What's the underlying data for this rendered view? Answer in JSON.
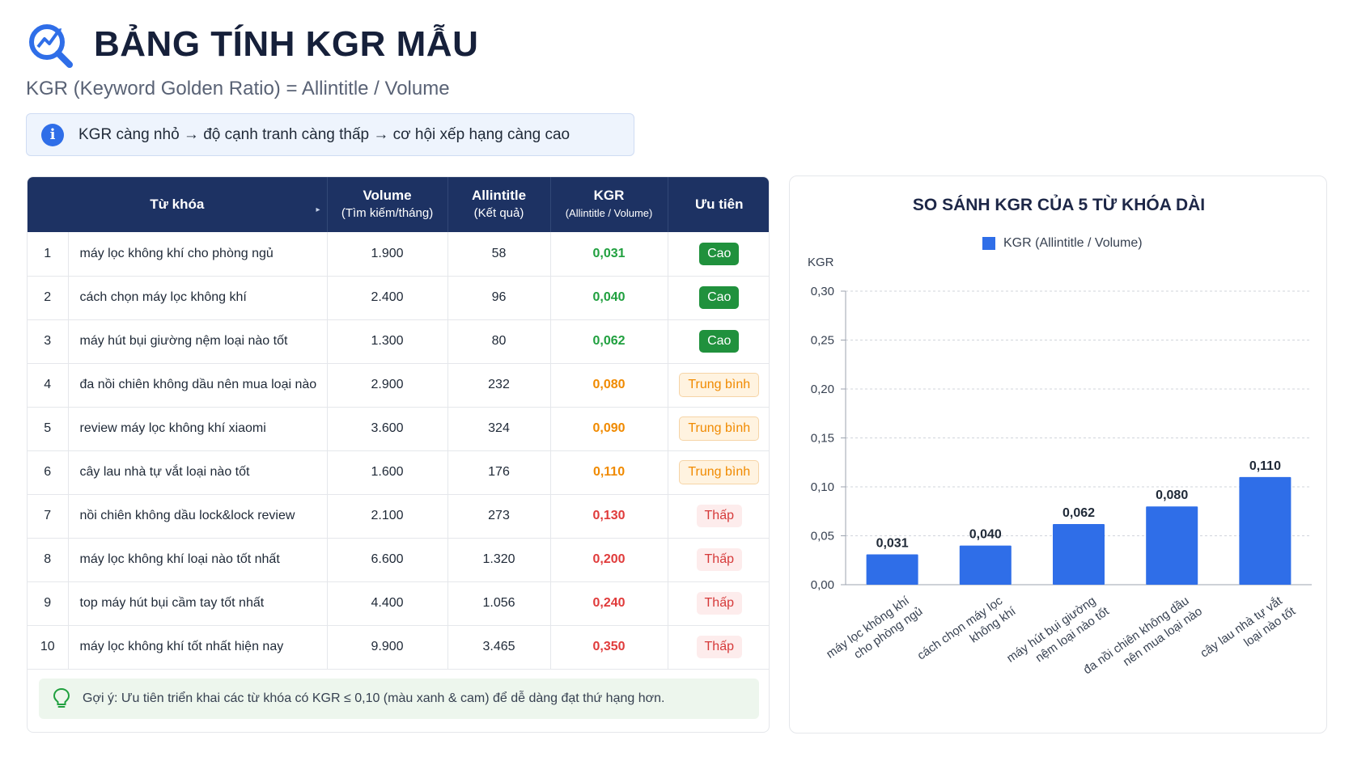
{
  "header": {
    "title": "BẢNG TÍNH KGR MẪU",
    "subtitle": "KGR (Keyword Golden Ratio) = Allintitle / Volume"
  },
  "info": {
    "text": "KGR càng nhỏ → độ cạnh tranh càng thấp → cơ hội xếp hạng càng cao",
    "icon": "info-icon"
  },
  "table": {
    "headers": {
      "keyword": "Từ khóa",
      "volume": "Volume",
      "volume_sub": "(Tìm kiếm/tháng)",
      "allintitle": "Allintitle",
      "allintitle_sub": "(Kết quả)",
      "kgr": "KGR",
      "kgr_sub": "(Allintitle / Volume)",
      "priority": "Ưu tiên"
    },
    "rows": [
      {
        "no": "1",
        "keyword": "máy lọc không khí cho phòng ngủ",
        "volume": "1.900",
        "allintitle": "58",
        "kgr": "0,031",
        "priority": "Cao",
        "level": "high"
      },
      {
        "no": "2",
        "keyword": "cách chọn máy lọc không khí",
        "volume": "2.400",
        "allintitle": "96",
        "kgr": "0,040",
        "priority": "Cao",
        "level": "high"
      },
      {
        "no": "3",
        "keyword": "máy hút bụi giường nệm loại nào tốt",
        "volume": "1.300",
        "allintitle": "80",
        "kgr": "0,062",
        "priority": "Cao",
        "level": "high"
      },
      {
        "no": "4",
        "keyword": "đa nồi chiên không dầu nên mua loại nào",
        "volume": "2.900",
        "allintitle": "232",
        "kgr": "0,080",
        "priority": "Trung bình",
        "level": "mid"
      },
      {
        "no": "5",
        "keyword": "review máy lọc không khí xiaomi",
        "volume": "3.600",
        "allintitle": "324",
        "kgr": "0,090",
        "priority": "Trung bình",
        "level": "mid"
      },
      {
        "no": "6",
        "keyword": "cây lau nhà tự vắt loại nào tốt",
        "volume": "1.600",
        "allintitle": "176",
        "kgr": "0,110",
        "priority": "Trung bình",
        "level": "mid"
      },
      {
        "no": "7",
        "keyword": "nồi chiên không dầu lock&lock review",
        "volume": "2.100",
        "allintitle": "273",
        "kgr": "0,130",
        "priority": "Thấp",
        "level": "low"
      },
      {
        "no": "8",
        "keyword": "máy lọc không khí loại nào tốt nhất",
        "volume": "6.600",
        "allintitle": "1.320",
        "kgr": "0,200",
        "priority": "Thấp",
        "level": "low"
      },
      {
        "no": "9",
        "keyword": "top máy hút bụi cầm tay tốt nhất",
        "volume": "4.400",
        "allintitle": "1.056",
        "kgr": "0,240",
        "priority": "Thấp",
        "level": "low"
      },
      {
        "no": "10",
        "keyword": "máy lọc không khí tốt nhất hiện nay",
        "volume": "9.900",
        "allintitle": "3.465",
        "kgr": "0,350",
        "priority": "Thấp",
        "level": "low"
      }
    ],
    "level_colors": {
      "high": "#20a03f",
      "mid": "#f08a00",
      "low": "#e03b3b"
    }
  },
  "tip": {
    "text": "Gợi ý: Ưu tiên triển khai các từ khóa có KGR ≤ 0,10 (màu xanh & cam) để dễ dàng đạt thứ hạng hơn.",
    "icon": "lightbulb-icon"
  },
  "chart_data": {
    "type": "bar",
    "title": "SO SÁNH KGR CỦA 5 TỪ KHÓA DÀI",
    "ylabel": "KGR",
    "xlabel": "",
    "legend": "KGR (Allintitle / Volume)",
    "legend_position": "top",
    "grid": true,
    "ylim": [
      0,
      0.3
    ],
    "yticks": [
      0,
      0.05,
      0.1,
      0.15,
      0.2,
      0.25,
      0.3
    ],
    "ytick_labels": [
      "0,00",
      "0,05",
      "0,10",
      "0,15",
      "0,20",
      "0,25",
      "0,30"
    ],
    "categories": [
      [
        "máy lọc không khí",
        "cho phòng ngủ"
      ],
      [
        "cách chọn máy lọc",
        "không khí"
      ],
      [
        "máy hút bụi giường",
        "nệm loại nào tốt"
      ],
      [
        "đa nồi chiên không dầu",
        "nên mua loại nào"
      ],
      [
        "cây lau nhà tự vắt",
        "loại nào tốt"
      ]
    ],
    "values": [
      0.031,
      0.04,
      0.062,
      0.08,
      0.11
    ],
    "value_labels": [
      "0,031",
      "0,040",
      "0,062",
      "0,080",
      "0,110"
    ],
    "color": "#2f6ee8"
  }
}
